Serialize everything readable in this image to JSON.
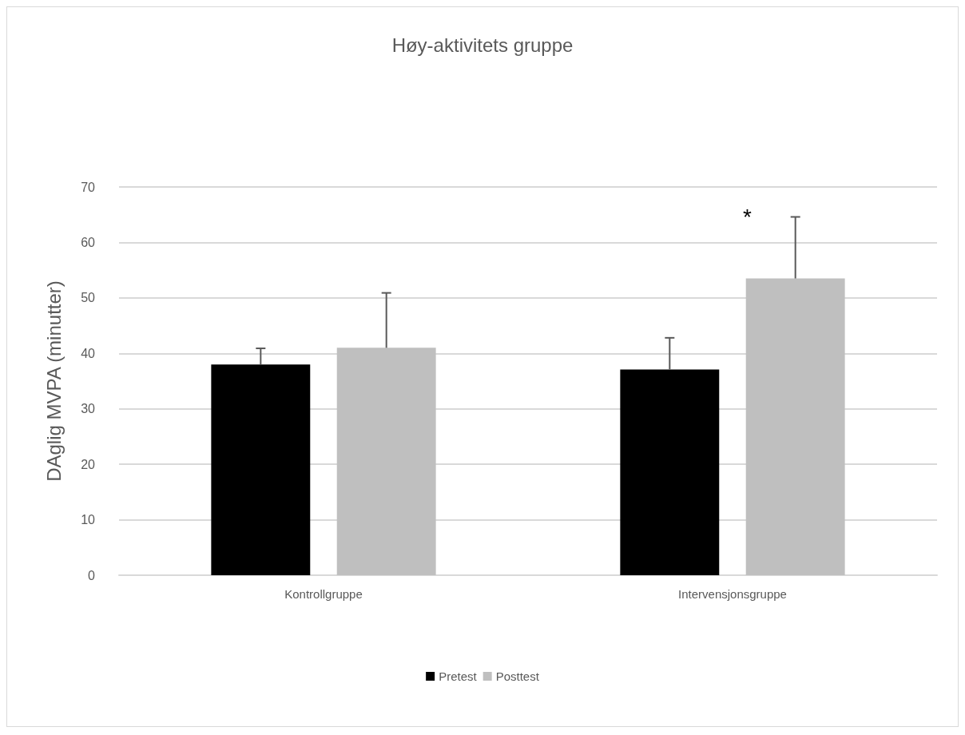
{
  "chart_data": {
    "type": "bar",
    "title": "Høy-aktivitets gruppe",
    "ylabel": "DAglig MVPA (minutter)",
    "categories": [
      "Kontrollgruppe",
      "Intervensjonsgruppe"
    ],
    "series": [
      {
        "name": "Pretest",
        "color": "#000000",
        "values": [
          38,
          37.1
        ],
        "errors": [
          [
            38,
            40.9
          ],
          [
            37.1,
            42.8
          ]
        ]
      },
      {
        "name": "Posttest",
        "color": "#bfbfbf",
        "values": [
          41,
          53.5
        ],
        "errors": [
          [
            41,
            50.9
          ],
          [
            53.5,
            64.6
          ]
        ]
      }
    ],
    "ylim": [
      0,
      70
    ],
    "yticks": [
      0,
      10,
      20,
      30,
      40,
      50,
      60,
      70
    ],
    "grid": "y",
    "legend": "bottom",
    "annotations": [
      "*"
    ]
  }
}
